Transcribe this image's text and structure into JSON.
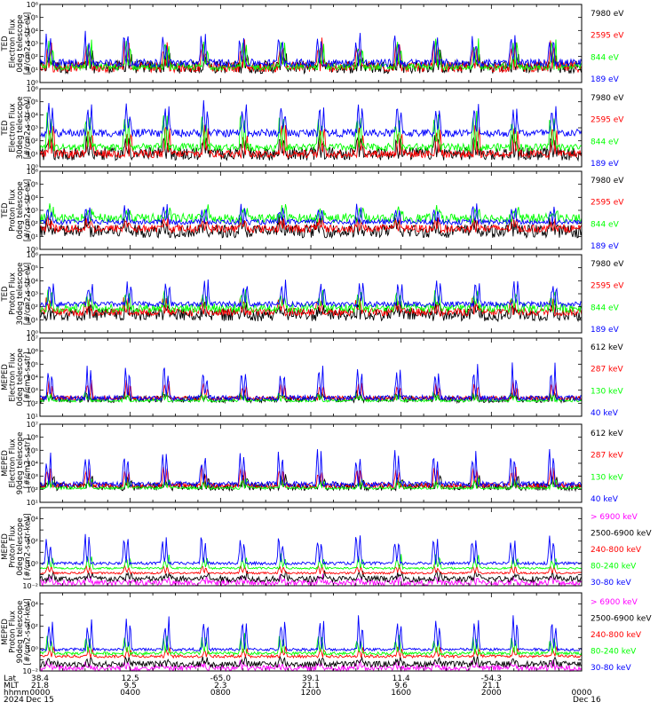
{
  "colors": {
    "black": "#000000",
    "red": "#ff0000",
    "green": "#00ff00",
    "blue": "#0000ff",
    "magenta": "#ff00ff"
  },
  "chart_data": [
    {
      "type": "line",
      "ylabel": [
        "TED",
        "Electron Flux",
        "0deg telescope",
        "[#/cm2-s-str-eV]"
      ],
      "ylog": true,
      "ytick_labels": [
        "10⁰",
        "10¹",
        "10²",
        "10³",
        "10⁴",
        "10⁵",
        "10⁶"
      ],
      "ylim": [
        1,
        1000000
      ],
      "series": [
        {
          "name": "7980 eV",
          "color": "#000000",
          "baseline_log": 1.2,
          "spike_log": 2.2,
          "noise": 0.5
        },
        {
          "name": "2595 eV",
          "color": "#ff0000",
          "baseline_log": 1.2,
          "spike_log": 3.4,
          "noise": 0.4
        },
        {
          "name": "844 eV",
          "color": "#00ff00",
          "baseline_log": 1.2,
          "spike_log": 3.5,
          "noise": 0.25
        },
        {
          "name": "189 eV",
          "color": "#0000ff",
          "baseline_log": 1.5,
          "spike_log": 4.2,
          "noise": 0.3
        }
      ]
    },
    {
      "type": "line",
      "ylabel": [
        "TED",
        "Electron Flux",
        "30deg telescope",
        "[#/cm2-s-str-eV]"
      ],
      "ylog": true,
      "ytick_labels": [
        "10⁰",
        "10¹",
        "10²",
        "10³",
        "10⁴",
        "10⁵",
        "10⁶"
      ],
      "ylim": [
        1,
        1000000
      ],
      "series": [
        {
          "name": "7980 eV",
          "color": "#000000",
          "baseline_log": 1.0,
          "spike_log": 2.6,
          "noise": 0.5
        },
        {
          "name": "2595 eV",
          "color": "#ff0000",
          "baseline_log": 1.0,
          "spike_log": 3.6,
          "noise": 0.3
        },
        {
          "name": "844 eV",
          "color": "#00ff00",
          "baseline_log": 1.5,
          "spike_log": 4.6,
          "noise": 0.3
        },
        {
          "name": "189 eV",
          "color": "#0000ff",
          "baseline_log": 2.6,
          "spike_log": 5.2,
          "noise": 0.3
        }
      ]
    },
    {
      "type": "line",
      "ylabel": [
        "TED",
        "Proton Flux",
        "0deg telescope",
        "[#/cm2-s-str-eV]"
      ],
      "ylog": true,
      "ytick_labels": [
        "10⁰",
        "10¹",
        "10²",
        "10³",
        "10⁴",
        "10⁵",
        "10⁶"
      ],
      "ylim": [
        1,
        1000000
      ],
      "series": [
        {
          "name": "7980 eV",
          "color": "#000000",
          "baseline_log": 1.4,
          "spike_log": 2.4,
          "noise": 0.5
        },
        {
          "name": "2595 eV",
          "color": "#ff0000",
          "baseline_log": 1.6,
          "spike_log": 2.6,
          "noise": 0.3
        },
        {
          "name": "844 eV",
          "color": "#00ff00",
          "baseline_log": 2.4,
          "spike_log": 3.4,
          "noise": 0.35
        },
        {
          "name": "189 eV",
          "color": "#0000ff",
          "baseline_log": 2.1,
          "spike_log": 3.6,
          "noise": 0.2
        }
      ]
    },
    {
      "type": "line",
      "ylabel": [
        "TED",
        "Proton Flux",
        "30deg telescope",
        "[#/cm2-s-str-eV]"
      ],
      "ylog": true,
      "ytick_labels": [
        "10⁰",
        "10¹",
        "10²",
        "10³",
        "10⁴",
        "10⁵",
        "10⁶"
      ],
      "ylim": [
        1,
        1000000
      ],
      "series": [
        {
          "name": "7980 eV",
          "color": "#000000",
          "baseline_log": 1.4,
          "spike_log": 2.4,
          "noise": 0.5
        },
        {
          "name": "2595 eV",
          "color": "#ff0000",
          "baseline_log": 1.6,
          "spike_log": 2.8,
          "noise": 0.3
        },
        {
          "name": "844 eV",
          "color": "#00ff00",
          "baseline_log": 1.9,
          "spike_log": 3.4,
          "noise": 0.35
        },
        {
          "name": "189 eV",
          "color": "#0000ff",
          "baseline_log": 2.2,
          "spike_log": 4.3,
          "noise": 0.2
        }
      ]
    },
    {
      "type": "line",
      "ylabel": [
        "MEPED",
        "Electron Flux",
        "0deg telescope",
        "[#/cm2-s-str]"
      ],
      "ylog": true,
      "ytick_labels": [
        "10¹",
        "10²",
        "10³",
        "10⁴",
        "10⁵",
        "10⁶",
        "10⁷"
      ],
      "ylim": [
        10,
        10000000
      ],
      "series": [
        {
          "name": "612 keV",
          "color": "#000000",
          "baseline_log": 2.3,
          "spike_log": 2.9,
          "noise": 0.25
        },
        {
          "name": "287 keV",
          "color": "#ff0000",
          "baseline_log": 2.4,
          "spike_log": 3.8,
          "noise": 0.15
        },
        {
          "name": "130 keV",
          "color": "#00ff00",
          "baseline_log": 2.2,
          "spike_log": 3.0,
          "noise": 0.1
        },
        {
          "name": "40 keV",
          "color": "#0000ff",
          "baseline_log": 2.4,
          "spike_log": 5.2,
          "noise": 0.2
        }
      ]
    },
    {
      "type": "line",
      "ylabel": [
        "MEPED",
        "Electron Flux",
        "90deg telescope",
        "[#/cm2-s-str]"
      ],
      "ylog": true,
      "ytick_labels": [
        "10¹",
        "10²",
        "10³",
        "10⁴",
        "10⁵",
        "10⁶",
        "10⁷"
      ],
      "ylim": [
        10,
        10000000
      ],
      "series": [
        {
          "name": "612 keV",
          "color": "#000000",
          "baseline_log": 2.2,
          "spike_log": 3.2,
          "noise": 0.3
        },
        {
          "name": "287 keV",
          "color": "#ff0000",
          "baseline_log": 2.3,
          "spike_log": 4.0,
          "noise": 0.2
        },
        {
          "name": "130 keV",
          "color": "#00ff00",
          "baseline_log": 2.1,
          "spike_log": 3.0,
          "noise": 0.1
        },
        {
          "name": "40 keV",
          "color": "#0000ff",
          "baseline_log": 2.4,
          "spike_log": 5.4,
          "noise": 0.2
        }
      ]
    },
    {
      "type": "line",
      "ylabel": [
        "MEPED",
        "Proton Flux",
        "0deg telescope",
        "[#/cm2-s-str-keV]"
      ],
      "ylog": true,
      "ytick_labels": [
        "10⁻²",
        "",
        "10⁰",
        "",
        "10²",
        "",
        "10⁴",
        ""
      ],
      "ylim": [
        0.01,
        1000000
      ],
      "series": [
        {
          "name": "> 6900 keV",
          "color": "#ff00ff",
          "baseline_log": -1.7,
          "spike_log": -1.0,
          "noise": 0.3
        },
        {
          "name": "2500-6900 keV",
          "color": "#000000",
          "baseline_log": -1.3,
          "spike_log": -0.5,
          "noise": 0.3
        },
        {
          "name": "240-800 keV",
          "color": "#ff0000",
          "baseline_log": -0.7,
          "spike_log": 0.3,
          "noise": 0.1
        },
        {
          "name": "80-240 keV",
          "color": "#00ff00",
          "baseline_log": -0.2,
          "spike_log": 1.3,
          "noise": 0.1
        },
        {
          "name": "30-80 keV",
          "color": "#0000ff",
          "baseline_log": 0.3,
          "spike_log": 3.6,
          "noise": 0.15
        }
      ]
    },
    {
      "type": "line",
      "ylabel": [
        "MEPED",
        "Proton Flux",
        "90deg telescope",
        "[#/cm2-s-str-keV]"
      ],
      "ylog": true,
      "ytick_labels": [
        "10⁻²",
        "",
        "10⁰",
        "",
        "10²",
        "",
        "10⁴",
        ""
      ],
      "ylim": [
        0.01,
        1000000
      ],
      "series": [
        {
          "name": "> 6900 keV",
          "color": "#ff00ff",
          "baseline_log": -1.7,
          "spike_log": -1.0,
          "noise": 0.3
        },
        {
          "name": "2500-6900 keV",
          "color": "#000000",
          "baseline_log": -1.3,
          "spike_log": -0.5,
          "noise": 0.3
        },
        {
          "name": "240-800 keV",
          "color": "#ff0000",
          "baseline_log": -0.5,
          "spike_log": 0.6,
          "noise": 0.15
        },
        {
          "name": "80-240 keV",
          "color": "#00ff00",
          "baseline_log": -0.2,
          "spike_log": 2.0,
          "noise": 0.15
        },
        {
          "name": "30-80 keV",
          "color": "#0000ff",
          "baseline_log": 0.2,
          "spike_log": 3.8,
          "noise": 0.15
        }
      ]
    }
  ],
  "x_axis": {
    "row_labels": [
      "Lat",
      "MLT",
      "hhmm",
      "2024"
    ],
    "columns": [
      {
        "lat": "38.4",
        "mlt": "21.8",
        "time": "0000",
        "date": "Dec 15"
      },
      {
        "lat": "12.5",
        "mlt": "9.5",
        "time": "0400",
        "date": ""
      },
      {
        "lat": "-65.0",
        "mlt": "2.3",
        "time": "0800",
        "date": ""
      },
      {
        "lat": "39.1",
        "mlt": "21.1",
        "time": "1200",
        "date": ""
      },
      {
        "lat": "11.4",
        "mlt": "9.6",
        "time": "1600",
        "date": ""
      },
      {
        "lat": "-54.3",
        "mlt": "21.1",
        "time": "2000",
        "date": ""
      },
      {
        "lat": "",
        "mlt": "",
        "time": "0000",
        "date": "Dec 16"
      }
    ]
  },
  "passes_per_day": 14
}
